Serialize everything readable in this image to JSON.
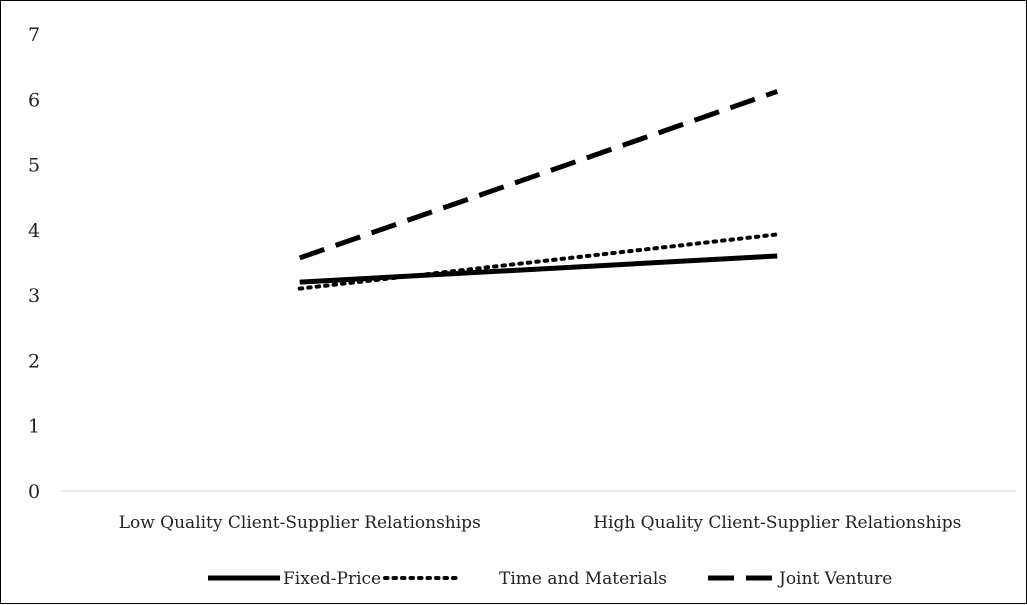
{
  "chart_data": {
    "type": "line",
    "categories": [
      "Low Quality Client-Supplier Relationships",
      "High Quality Client-Supplier Relationships"
    ],
    "ylim": [
      0,
      7
    ],
    "yticks": [
      "0",
      "1",
      "2",
      "3",
      "4",
      "5",
      "6",
      "7"
    ],
    "grid": false,
    "legend_position": "bottom",
    "series": [
      {
        "name": "Fixed-Price",
        "values": [
          3.2,
          3.6
        ],
        "style": "solid",
        "color": "#000000"
      },
      {
        "name": "Time and Materials",
        "values": [
          3.1,
          3.93
        ],
        "style": "dotted",
        "color": "#000000"
      },
      {
        "name": "Joint Venture",
        "values": [
          3.57,
          6.12
        ],
        "style": "dashed",
        "color": "#000000"
      }
    ]
  }
}
